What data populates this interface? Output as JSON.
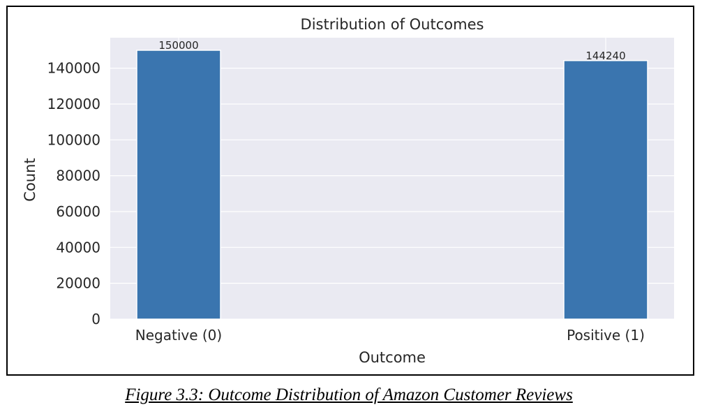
{
  "figure": {
    "caption": "Figure 3.3: Outcome Distribution of Amazon Customer Reviews"
  },
  "colors": {
    "bar": "#3a75af",
    "plot_background": "#eaeaf2",
    "grid": "#ffffff",
    "text": "#262626"
  },
  "chart_data": {
    "type": "bar",
    "title": "Distribution of Outcomes",
    "xlabel": "Outcome",
    "ylabel": "Count",
    "categories": [
      "Negative (0)",
      "Positive (1)"
    ],
    "values": [
      150000,
      144240
    ],
    "data_labels": [
      "150000",
      "144240"
    ],
    "ylim": [
      0,
      157000
    ],
    "yticks": [
      0,
      20000,
      40000,
      60000,
      80000,
      100000,
      120000,
      140000
    ],
    "ytick_labels": [
      "0",
      "20000",
      "40000",
      "60000",
      "80000",
      "100000",
      "120000",
      "140000"
    ],
    "grid": true,
    "legend": false
  }
}
